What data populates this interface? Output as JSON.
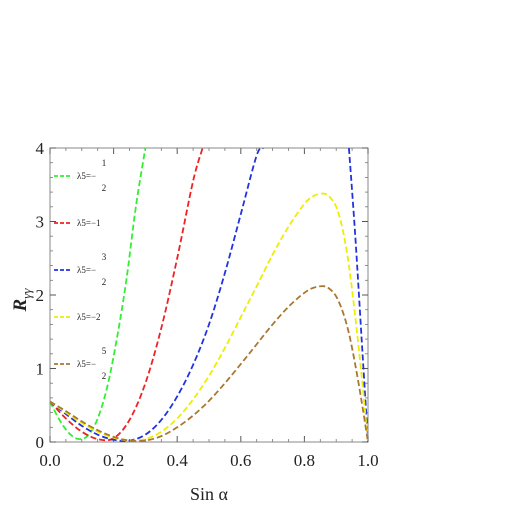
{
  "chart_data": {
    "type": "line",
    "xlabel": "Sin α",
    "ylabel": "R",
    "ylabel_sub": "γγ",
    "xlim": [
      0,
      1
    ],
    "ylim": [
      0,
      4
    ],
    "x_ticks": [
      "0.0",
      "0.2",
      "0.4",
      "0.6",
      "0.8",
      "1.0"
    ],
    "y_ticks": [
      "0",
      "1",
      "2",
      "3",
      "4"
    ],
    "legend_position": "top-left",
    "series": [
      {
        "name_prefix": "λ5=−",
        "num": "1",
        "den": "2",
        "color": "#33ee33",
        "x": [
          0,
          0.03,
          0.06,
          0.09,
          0.12,
          0.15,
          0.18,
          0.21,
          0.24,
          0.27,
          0.3
        ],
        "y": [
          0.55,
          0.3,
          0.12,
          0.04,
          0.09,
          0.32,
          0.75,
          1.4,
          2.2,
          3.2,
          4.0
        ]
      },
      {
        "name_prefix": "λ5=−1",
        "num": "",
        "den": "",
        "color": "#ee2222",
        "x": [
          0,
          0.05,
          0.1,
          0.15,
          0.2,
          0.25,
          0.3,
          0.35,
          0.4,
          0.45,
          0.48
        ],
        "y": [
          0.55,
          0.32,
          0.14,
          0.04,
          0.05,
          0.3,
          0.8,
          1.55,
          2.5,
          3.55,
          4.0
        ]
      },
      {
        "name_prefix": "λ5=−",
        "num": "3",
        "den": "2",
        "color": "#2233dd",
        "x": [
          0,
          0.05,
          0.1,
          0.15,
          0.2,
          0.25,
          0.3,
          0.35,
          0.4,
          0.45,
          0.5,
          0.55,
          0.6,
          0.65,
          0.67,
          0.94,
          0.96,
          0.98,
          1.0
        ],
        "y": [
          0.55,
          0.38,
          0.22,
          0.1,
          0.03,
          0.02,
          0.1,
          0.3,
          0.62,
          1.05,
          1.6,
          2.3,
          3.1,
          3.9,
          4.0,
          4.0,
          2.8,
          1.4,
          0.0
        ]
      },
      {
        "name_prefix": "λ5=−2",
        "num": "",
        "den": "",
        "color": "#eeee00",
        "x": [
          0,
          0.05,
          0.1,
          0.15,
          0.2,
          0.25,
          0.3,
          0.35,
          0.4,
          0.45,
          0.5,
          0.55,
          0.6,
          0.65,
          0.7,
          0.75,
          0.8,
          0.83,
          0.86,
          0.88,
          0.9,
          0.92,
          0.94,
          0.96,
          0.98,
          1.0
        ],
        "y": [
          0.55,
          0.4,
          0.26,
          0.14,
          0.06,
          0.02,
          0.04,
          0.14,
          0.32,
          0.58,
          0.9,
          1.28,
          1.7,
          2.12,
          2.55,
          2.93,
          3.24,
          3.35,
          3.38,
          3.33,
          3.2,
          2.9,
          2.4,
          1.7,
          0.9,
          0.0
        ]
      },
      {
        "name_prefix": "λ5=−",
        "num": "5",
        "den": "2",
        "color": "#aa7733",
        "x": [
          0,
          0.05,
          0.1,
          0.15,
          0.2,
          0.25,
          0.3,
          0.35,
          0.4,
          0.45,
          0.5,
          0.55,
          0.6,
          0.65,
          0.7,
          0.75,
          0.8,
          0.83,
          0.86,
          0.88,
          0.9,
          0.92,
          0.94,
          0.96,
          0.98,
          1.0
        ],
        "y": [
          0.55,
          0.42,
          0.28,
          0.16,
          0.07,
          0.02,
          0.02,
          0.08,
          0.2,
          0.36,
          0.56,
          0.8,
          1.06,
          1.33,
          1.6,
          1.84,
          2.03,
          2.1,
          2.12,
          2.08,
          1.98,
          1.78,
          1.48,
          1.05,
          0.55,
          0.0
        ]
      }
    ]
  }
}
